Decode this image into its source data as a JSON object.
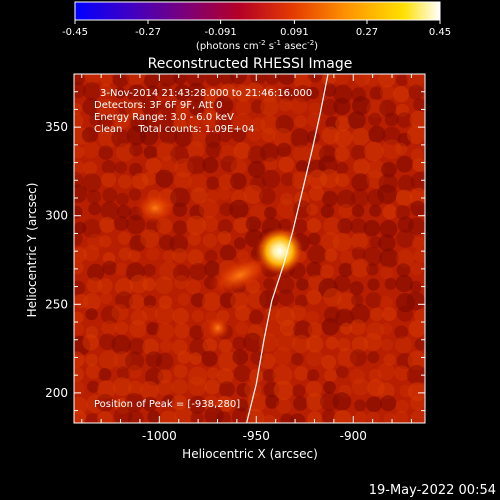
{
  "colorbar": {
    "tick_labels": [
      "-0.45",
      "-0.27",
      "-0.091",
      "0.091",
      "0.27",
      "0.45"
    ],
    "tick_values": [
      -0.45,
      -0.27,
      -0.091,
      0.091,
      0.27,
      0.45
    ],
    "range": [
      -0.45,
      0.45
    ],
    "units_label": "(photons cm",
    "units_exp1": "-2",
    "units_mid1": " s",
    "units_exp2": "-1",
    "units_mid2": " asec",
    "units_exp3": "-2",
    "units_end": ")",
    "colors": [
      "#0000ff",
      "#3a00c8",
      "#7a007a",
      "#b40026",
      "#e43c00",
      "#ff9600",
      "#ffe000",
      "#ffffff"
    ]
  },
  "plot": {
    "title": "Reconstructed RHESSI Image",
    "xlabel": "Heliocentric X (arcsec)",
    "ylabel": "Heliocentric Y (arcsec)",
    "x_ticks": [
      "-1000",
      "-950",
      "-900"
    ],
    "x_tick_values": [
      -1000,
      -950,
      -900
    ],
    "y_ticks": [
      "200",
      "250",
      "300",
      "350"
    ],
    "y_tick_values": [
      200,
      250,
      300,
      350
    ],
    "xlim": [
      -1044,
      -863
    ],
    "ylim": [
      183,
      380
    ]
  },
  "annotations": {
    "time_range": "3-Nov-2014 21:43:28.000 to 21:46:16.000",
    "detectors": "Detectors: 3F 6F 9F, Att 0",
    "energy": "Energy Range: 3.0 - 6.0 keV",
    "method": "Clean     Total counts: 1.09E+04",
    "peak": "Position of Peak = [-938,280]"
  },
  "footer": {
    "date": "19-May-2022 00:54"
  },
  "peak": {
    "x": -938,
    "y": 280
  },
  "limb": [
    [
      -955,
      183
    ],
    [
      -950,
      205
    ],
    [
      -946,
      230
    ],
    [
      -942,
      252
    ],
    [
      -936,
      272
    ],
    [
      -931,
      292
    ],
    [
      -926,
      315
    ],
    [
      -921,
      338
    ],
    [
      -917,
      358
    ],
    [
      -913,
      380
    ]
  ]
}
